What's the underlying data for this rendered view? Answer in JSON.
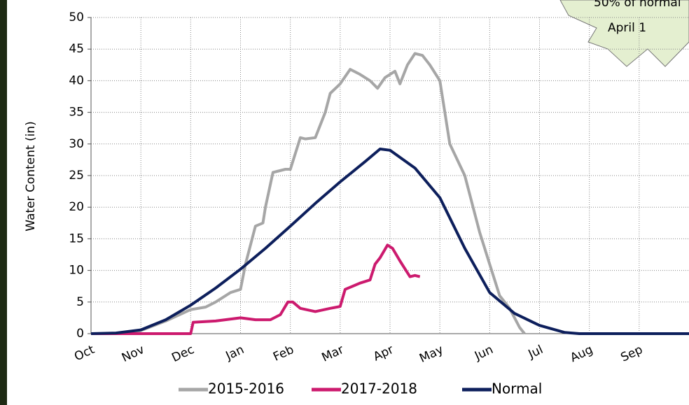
{
  "chart_data": {
    "type": "line",
    "ylabel": "Water Content (in)",
    "annotations": [
      "50% of normal",
      "April 1"
    ],
    "xlim": [
      0,
      12
    ],
    "ylim": [
      0,
      50
    ],
    "yticks": [
      0,
      5,
      10,
      15,
      20,
      25,
      30,
      35,
      40,
      45,
      50
    ],
    "xticks": [
      {
        "value": 0,
        "label": "Oct"
      },
      {
        "value": 1,
        "label": "Nov"
      },
      {
        "value": 2,
        "label": "Dec"
      },
      {
        "value": 3,
        "label": "Jan"
      },
      {
        "value": 4,
        "label": "Feb"
      },
      {
        "value": 5,
        "label": "Mar"
      },
      {
        "value": 6,
        "label": "Apr"
      },
      {
        "value": 7,
        "label": "May"
      },
      {
        "value": 8,
        "label": "Jun"
      },
      {
        "value": 9,
        "label": "Jul"
      },
      {
        "value": 10,
        "label": "Aug"
      },
      {
        "value": 11,
        "label": "Sep"
      }
    ],
    "grid": true,
    "legend": "bottom",
    "series": [
      {
        "name": "2015-2016",
        "color": "#a6a6a6",
        "x": [
          0,
          0.8,
          1,
          1.5,
          2,
          2.3,
          2.5,
          2.8,
          3,
          3.1,
          3.3,
          3.45,
          3.5,
          3.65,
          3.9,
          4,
          4.2,
          4.3,
          4.5,
          4.7,
          4.8,
          5,
          5.2,
          5.4,
          5.6,
          5.75,
          5.9,
          6.1,
          6.2,
          6.35,
          6.5,
          6.65,
          6.8,
          7,
          7.2,
          7.5,
          7.8,
          8,
          8.2,
          8.4,
          8.6,
          8.7
        ],
        "values": [
          0,
          0,
          0.5,
          2,
          3.8,
          4.2,
          5,
          6.5,
          7,
          11,
          17,
          17.5,
          20,
          25.5,
          26,
          26,
          31,
          30.8,
          31,
          35,
          38,
          39.5,
          41.8,
          41,
          40,
          38.8,
          40.5,
          41.5,
          39.5,
          42.5,
          44.3,
          44,
          42.5,
          40,
          30,
          25,
          16,
          11,
          6,
          4,
          1,
          0
        ]
      },
      {
        "name": "2017-2018",
        "color": "#cc1a6e",
        "x": [
          0,
          2,
          2.05,
          2.5,
          3,
          3.3,
          3.6,
          3.8,
          3.95,
          4.05,
          4.2,
          4.5,
          4.8,
          5,
          5.1,
          5.4,
          5.6,
          5.7,
          5.8,
          5.95,
          6.05,
          6.2,
          6.4,
          6.5,
          6.6
        ],
        "values": [
          0,
          0,
          1.8,
          2,
          2.5,
          2.2,
          2.2,
          3,
          5,
          5,
          4,
          3.5,
          4,
          4.3,
          7,
          8,
          8.5,
          11,
          12,
          14,
          13.5,
          11.5,
          9,
          9.2,
          9
        ]
      },
      {
        "name": "Normal",
        "color": "#0d1f5c",
        "x": [
          0,
          0.5,
          1,
          1.5,
          2,
          2.5,
          3,
          3.5,
          4,
          4.5,
          5,
          5.5,
          5.8,
          6,
          6.5,
          7,
          7.5,
          8,
          8.5,
          9,
          9.5,
          9.8,
          12
        ],
        "values": [
          0,
          0.1,
          0.6,
          2.2,
          4.5,
          7.2,
          10.2,
          13.5,
          17,
          20.6,
          24,
          27.2,
          29.2,
          29,
          26.2,
          21.5,
          13.5,
          6.5,
          3.2,
          1.3,
          0.2,
          0,
          0
        ]
      }
    ]
  }
}
